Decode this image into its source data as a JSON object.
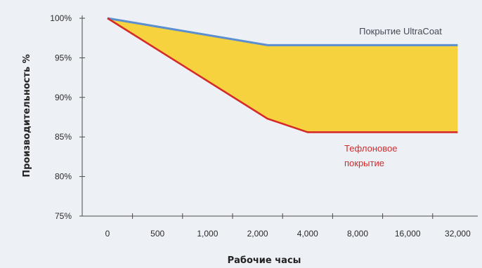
{
  "chart_data": {
    "type": "line",
    "title": "",
    "xlabel": "Рабочие часы",
    "ylabel": "Производительность %",
    "categories": [
      "0",
      "500",
      "1,000",
      "2,000",
      "4,000",
      "8,000",
      "16,000",
      "32,000"
    ],
    "ylim": [
      75,
      100
    ],
    "yticks": [
      "100%",
      "95%",
      "90%",
      "85%",
      "80%",
      "75%"
    ],
    "ytick_values": [
      100,
      95,
      90,
      85,
      80,
      75
    ],
    "grid": false,
    "series": [
      {
        "name": "Покрытие UltraCoat",
        "color": "#5b8fd0",
        "points": [
          [
            0,
            100
          ],
          [
            3.2,
            96.6
          ],
          [
            7.0,
            96.6
          ]
        ]
      },
      {
        "name": "Тефлоновое покрытие",
        "color": "#d42a2a",
        "points": [
          [
            0,
            100
          ],
          [
            3.2,
            87.3
          ],
          [
            4.0,
            85.6
          ],
          [
            7.0,
            85.6
          ]
        ]
      }
    ],
    "fill_between": {
      "color": "#f7d23f",
      "upper": "Покрытие UltraCoat",
      "lower": "Тефлоновое покрытие"
    },
    "colors": {
      "plot_background": "#edf0f5",
      "axis": "#4a4a4a",
      "text": "#2a2a2a"
    }
  }
}
